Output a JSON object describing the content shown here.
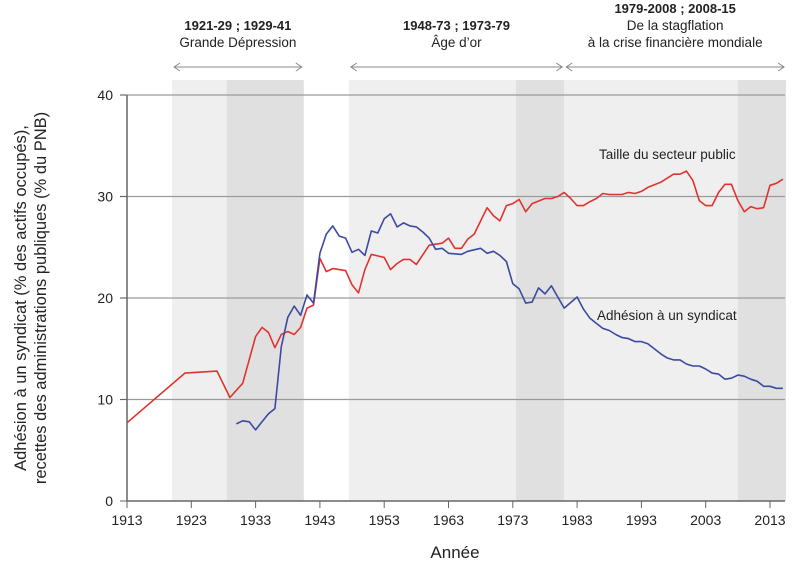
{
  "chart_data": {
    "type": "line",
    "xlabel": "Année",
    "ylabel_lines": [
      "Adhésion à un syndicat (% des actifs occupés),",
      "recettes des administrations publiques (% du PNB)"
    ],
    "xlim": [
      1913,
      2015
    ],
    "ylim": [
      0,
      40
    ],
    "x_ticks": [
      "1913",
      "1923",
      "1933",
      "1943",
      "1953",
      "1963",
      "1973",
      "1983",
      "1993",
      "2003",
      "2013"
    ],
    "y_ticks": [
      "0",
      "10",
      "20",
      "30",
      "40"
    ],
    "grid": true,
    "periods": [
      {
        "bold": "1921-29 ; 1929-41",
        "lines": [
          "Grande Dépression"
        ],
        "light": [
          1920,
          1928.5
        ],
        "dark": [
          1928.5,
          1940.5
        ]
      },
      {
        "bold": "1948-73 ; 1973-79",
        "lines": [
          "Âge d’or"
        ],
        "light": [
          1947.5,
          1973.5
        ],
        "dark": [
          1973.5,
          1981
        ]
      },
      {
        "bold": "1979-2008 ; 2008-15",
        "lines": [
          "De la stagflation",
          "à la crise financière mondiale"
        ],
        "light": [
          1981,
          2008
        ],
        "dark": [
          2008,
          2015.5
        ]
      }
    ],
    "series": [
      {
        "name": "Taille du secteur public",
        "color": "#e0332f",
        "points": [
          [
            1913,
            7.7
          ],
          [
            1922,
            12.6
          ],
          [
            1927,
            12.8
          ],
          [
            1929,
            10.2
          ],
          [
            1931,
            11.6
          ],
          [
            1933,
            16.2
          ],
          [
            1934,
            17.1
          ],
          [
            1935,
            16.6
          ],
          [
            1936,
            15.1
          ],
          [
            1937,
            16.4
          ],
          [
            1938,
            16.7
          ],
          [
            1939,
            16.4
          ],
          [
            1940,
            17.1
          ],
          [
            1941,
            19.0
          ],
          [
            1942,
            19.3
          ],
          [
            1943,
            23.9
          ],
          [
            1944,
            22.6
          ],
          [
            1945,
            22.9
          ],
          [
            1947,
            22.7
          ],
          [
            1948,
            21.3
          ],
          [
            1949,
            20.5
          ],
          [
            1950,
            22.8
          ],
          [
            1951,
            24.3
          ],
          [
            1953,
            24.0
          ],
          [
            1954,
            22.8
          ],
          [
            1955,
            23.4
          ],
          [
            1956,
            23.8
          ],
          [
            1957,
            23.8
          ],
          [
            1958,
            23.3
          ],
          [
            1960,
            25.2
          ],
          [
            1961,
            25.3
          ],
          [
            1962,
            25.4
          ],
          [
            1963,
            25.9
          ],
          [
            1964,
            24.9
          ],
          [
            1965,
            24.9
          ],
          [
            1966,
            25.8
          ],
          [
            1967,
            26.3
          ],
          [
            1969,
            28.9
          ],
          [
            1970,
            28.1
          ],
          [
            1971,
            27.6
          ],
          [
            1972,
            29.1
          ],
          [
            1973,
            29.3
          ],
          [
            1974,
            29.7
          ],
          [
            1975,
            28.5
          ],
          [
            1976,
            29.3
          ],
          [
            1978,
            29.8
          ],
          [
            1979,
            29.8
          ],
          [
            1980,
            30.0
          ],
          [
            1981,
            30.4
          ],
          [
            1982,
            29.8
          ],
          [
            1983,
            29.1
          ],
          [
            1984,
            29.1
          ],
          [
            1985,
            29.5
          ],
          [
            1986,
            29.8
          ],
          [
            1987,
            30.3
          ],
          [
            1988,
            30.2
          ],
          [
            1990,
            30.2
          ],
          [
            1991,
            30.4
          ],
          [
            1992,
            30.3
          ],
          [
            1993,
            30.5
          ],
          [
            1994,
            30.9
          ],
          [
            1996,
            31.4
          ],
          [
            1998,
            32.2
          ],
          [
            1999,
            32.2
          ],
          [
            2000,
            32.5
          ],
          [
            2001,
            31.6
          ],
          [
            2002,
            29.6
          ],
          [
            2003,
            29.1
          ],
          [
            2004,
            29.1
          ],
          [
            2005,
            30.4
          ],
          [
            2006,
            31.2
          ],
          [
            2007,
            31.2
          ],
          [
            2008,
            29.6
          ],
          [
            2009,
            28.5
          ],
          [
            2010,
            29.0
          ],
          [
            2011,
            28.8
          ],
          [
            2012,
            28.9
          ],
          [
            2013,
            31.1
          ],
          [
            2014,
            31.3
          ],
          [
            2015,
            31.7
          ]
        ]
      },
      {
        "name": "Adhésion à un syndicat",
        "color": "#3c4aa0",
        "points": [
          [
            1930,
            7.6
          ],
          [
            1931,
            7.9
          ],
          [
            1932,
            7.8
          ],
          [
            1933,
            7.0
          ],
          [
            1934,
            7.8
          ],
          [
            1935,
            8.6
          ],
          [
            1936,
            9.1
          ],
          [
            1937,
            15.2
          ],
          [
            1938,
            18.1
          ],
          [
            1939,
            19.2
          ],
          [
            1940,
            18.3
          ],
          [
            1941,
            20.3
          ],
          [
            1942,
            19.5
          ],
          [
            1943,
            24.4
          ],
          [
            1944,
            26.3
          ],
          [
            1945,
            27.1
          ],
          [
            1946,
            26.1
          ],
          [
            1947,
            25.9
          ],
          [
            1948,
            24.5
          ],
          [
            1949,
            24.8
          ],
          [
            1950,
            24.2
          ],
          [
            1951,
            26.6
          ],
          [
            1952,
            26.4
          ],
          [
            1953,
            27.8
          ],
          [
            1954,
            28.3
          ],
          [
            1955,
            27.0
          ],
          [
            1956,
            27.4
          ],
          [
            1957,
            27.1
          ],
          [
            1958,
            27.0
          ],
          [
            1959,
            26.5
          ],
          [
            1960,
            25.9
          ],
          [
            1961,
            24.8
          ],
          [
            1962,
            24.9
          ],
          [
            1963,
            24.4
          ],
          [
            1965,
            24.3
          ],
          [
            1966,
            24.6
          ],
          [
            1968,
            24.9
          ],
          [
            1969,
            24.4
          ],
          [
            1970,
            24.6
          ],
          [
            1971,
            24.2
          ],
          [
            1972,
            23.6
          ],
          [
            1973,
            21.4
          ],
          [
            1974,
            20.9
          ],
          [
            1975,
            19.5
          ],
          [
            1976,
            19.6
          ],
          [
            1977,
            21.0
          ],
          [
            1978,
            20.4
          ],
          [
            1979,
            21.2
          ],
          [
            1980,
            20.1
          ],
          [
            1981,
            19.0
          ],
          [
            1983,
            20.1
          ],
          [
            1984,
            18.9
          ],
          [
            1985,
            18.0
          ],
          [
            1986,
            17.5
          ],
          [
            1987,
            17.0
          ],
          [
            1988,
            16.8
          ],
          [
            1989,
            16.4
          ],
          [
            1990,
            16.1
          ],
          [
            1991,
            16.0
          ],
          [
            1992,
            15.7
          ],
          [
            1993,
            15.7
          ],
          [
            1994,
            15.5
          ],
          [
            1995,
            15.0
          ],
          [
            1996,
            14.5
          ],
          [
            1997,
            14.1
          ],
          [
            1998,
            13.9
          ],
          [
            1999,
            13.9
          ],
          [
            2000,
            13.5
          ],
          [
            2001,
            13.3
          ],
          [
            2002,
            13.3
          ],
          [
            2003,
            13.0
          ],
          [
            2004,
            12.6
          ],
          [
            2005,
            12.5
          ],
          [
            2006,
            12.0
          ],
          [
            2007,
            12.1
          ],
          [
            2008,
            12.4
          ],
          [
            2009,
            12.3
          ],
          [
            2010,
            12.0
          ],
          [
            2011,
            11.8
          ],
          [
            2012,
            11.3
          ],
          [
            2013,
            11.3
          ],
          [
            2014,
            11.1
          ],
          [
            2015,
            11.1
          ]
        ]
      }
    ]
  }
}
